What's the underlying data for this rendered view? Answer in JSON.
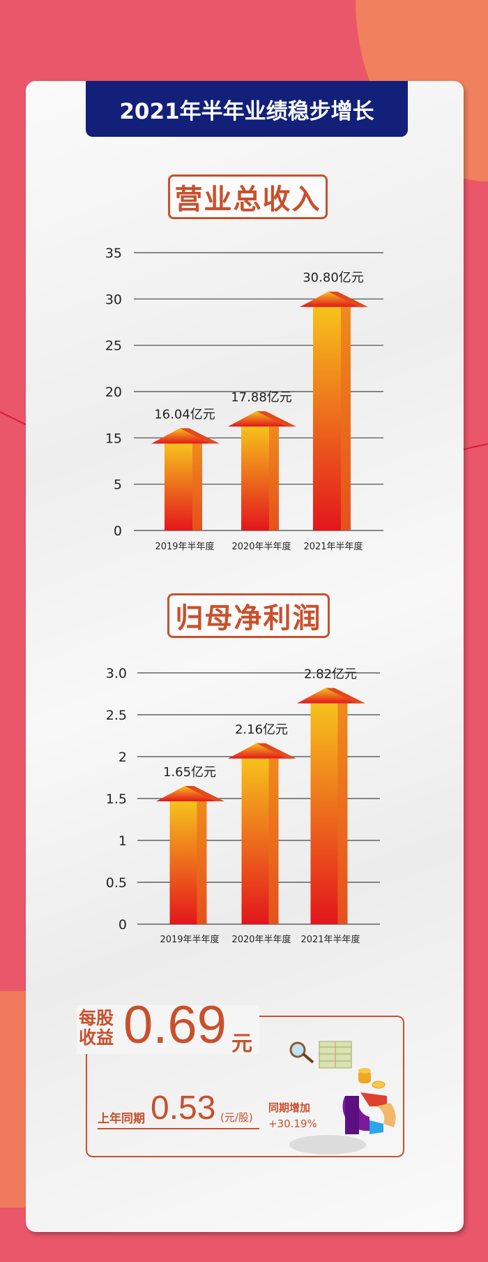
{
  "title": "2021年半年业绩稳步增长",
  "colors": {
    "background": "#ea566a",
    "banner": "#12207a",
    "accent": "#c9502c",
    "arrow_top": "#f6c21c",
    "arrow_bottom": "#e3161c"
  },
  "chart_data": [
    {
      "type": "bar",
      "title": "营业总收入",
      "categories": [
        "2019年半年度",
        "2020年半年度",
        "2021年半年度"
      ],
      "values": [
        16.04,
        17.88,
        30.8
      ],
      "data_labels": [
        "16.04亿元",
        "17.88亿元",
        "30.80亿元"
      ],
      "y_ticks": [
        "35",
        "30",
        "25",
        "20",
        "15",
        "5",
        "0"
      ],
      "grid": true,
      "bar_style": "arrow"
    },
    {
      "type": "bar",
      "title": "归母净利润",
      "categories": [
        "2019年半年度",
        "2020年半年度",
        "2021年半年度"
      ],
      "values": [
        1.65,
        2.16,
        2.82
      ],
      "data_labels": [
        "1.65亿元",
        "2.16亿元",
        "2.82亿元"
      ],
      "y_ticks": [
        "3.0",
        "2.5",
        "2",
        "1.5",
        "1",
        "0.5",
        "0"
      ],
      "ylim": [
        0,
        3.0
      ],
      "grid": true,
      "bar_style": "arrow"
    }
  ],
  "eps": {
    "label_line1": "每股",
    "label_line2": "收益",
    "value": "0.69",
    "unit": "元",
    "prev_label": "上年同期",
    "prev_value": "0.53",
    "prev_unit": "(元/股)",
    "growth_label": "同期增加",
    "growth_value": "+30.19%",
    "illustration": "finance-illustration"
  }
}
